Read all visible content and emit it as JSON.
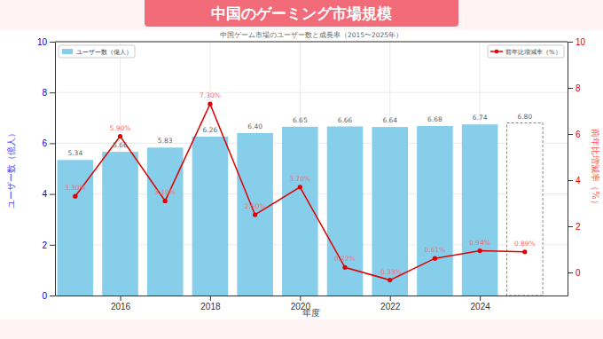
{
  "chart_data": {
    "type": "bar",
    "title": "中国のゲーミング市場規模",
    "subtitle": "中国ゲーム市場のユーザー数と成長率（2015〜2025年）",
    "x_label": "年度",
    "y_label": "ユーザー数（億人）",
    "y2_label": "前年比増減率（%）",
    "x": [
      2015,
      2016,
      2017,
      2018,
      2019,
      2020,
      2021,
      2022,
      2023,
      2024,
      2025
    ],
    "xlim": [
      2014.55,
      2025.95
    ],
    "xticks": [
      2016,
      2018,
      2020,
      2022,
      2024
    ],
    "ylim": [
      0,
      10
    ],
    "yticks": [
      0,
      2,
      4,
      6,
      8,
      10
    ],
    "y2lim": [
      -1,
      10
    ],
    "y2ticks": [
      0,
      2,
      4,
      6,
      8,
      10
    ],
    "grid": true,
    "legend": "upper left",
    "data_labels": true,
    "series": [
      {
        "name": "ユーザー数（億人）",
        "type": "bar",
        "color": "#87ceeb",
        "colors": [
          "#87ceeb",
          "#87ceeb",
          "#87ceeb",
          "#87ceeb",
          "#87ceeb",
          "#87ceeb",
          "#87ceeb",
          "#87ceeb",
          "#87ceeb",
          "#87ceeb",
          "#ffffff"
        ],
        "values": [
          5.34,
          5.66,
          5.83,
          6.26,
          6.4,
          6.65,
          6.66,
          6.64,
          6.68,
          6.74,
          6.8
        ],
        "value_labels": [
          "5.34",
          "5.66",
          "5.83",
          "6.26",
          "6.40",
          "6.65",
          "6.66",
          "6.64",
          "6.68",
          "6.74",
          "6.80"
        ]
      },
      {
        "name": "前年比増減率（%）",
        "type": "line",
        "axis": "y2",
        "color": "#e00000",
        "marker": "circle",
        "line_style": "solid",
        "values": [
          3.3,
          5.9,
          3.1,
          7.3,
          2.5,
          3.7,
          0.22,
          -0.33,
          0.61,
          0.94,
          0.89
        ],
        "value_labels": [
          "3.30%",
          "5.90%",
          "3.10%",
          "7.30%",
          "2.50%",
          "3.70%",
          "0.22%",
          "-0.33%",
          "0.61%",
          "0.94%",
          "0.89%"
        ]
      }
    ]
  }
}
